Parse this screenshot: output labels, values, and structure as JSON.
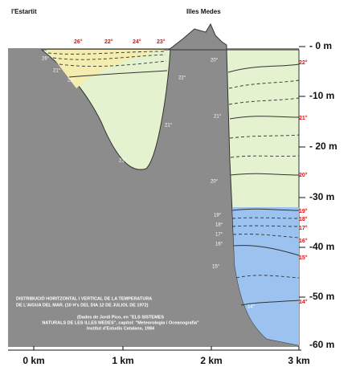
{
  "places": [
    "l'Estartit",
    "Illes Medes"
  ],
  "depths": [
    "- 0 m",
    "-10 m",
    "- 20 m",
    "-30 m",
    "-40 m",
    "-50 m",
    "-60 m"
  ],
  "distances": [
    "0 km",
    "1 km",
    "2 km",
    "3 km"
  ],
  "surface_temps": [
    "26°",
    "22°",
    "24°",
    "23°"
  ],
  "edge_temps": [
    "22°",
    "21°",
    "20°",
    "19°",
    "18°",
    "17°",
    "16°",
    "15°",
    "14°"
  ],
  "inner_temps": [
    "26°",
    "21°",
    "22°",
    "22°",
    "21°",
    "21°",
    "20°",
    "21°",
    "20°",
    "19°",
    "18°",
    "17°",
    "16°",
    "15°",
    "14°"
  ],
  "caption": [
    "DISTRIBUCIÓ HORITZONTAL I VERTICAL DE LA TEMPERATURA",
    "DE L'AIGUA DEL MAR. (10 H's DEL DIA 12 DE JULIOL DE 1972)",
    "(Dades de Jordi Pico, en \"ELS SISTEMES",
    "NATURALS DE LES ILLES MEDES\", capítol: \"Meteorologia i Oceanografia\"",
    "Institut d'Estudis Catalans, 1984"
  ]
}
